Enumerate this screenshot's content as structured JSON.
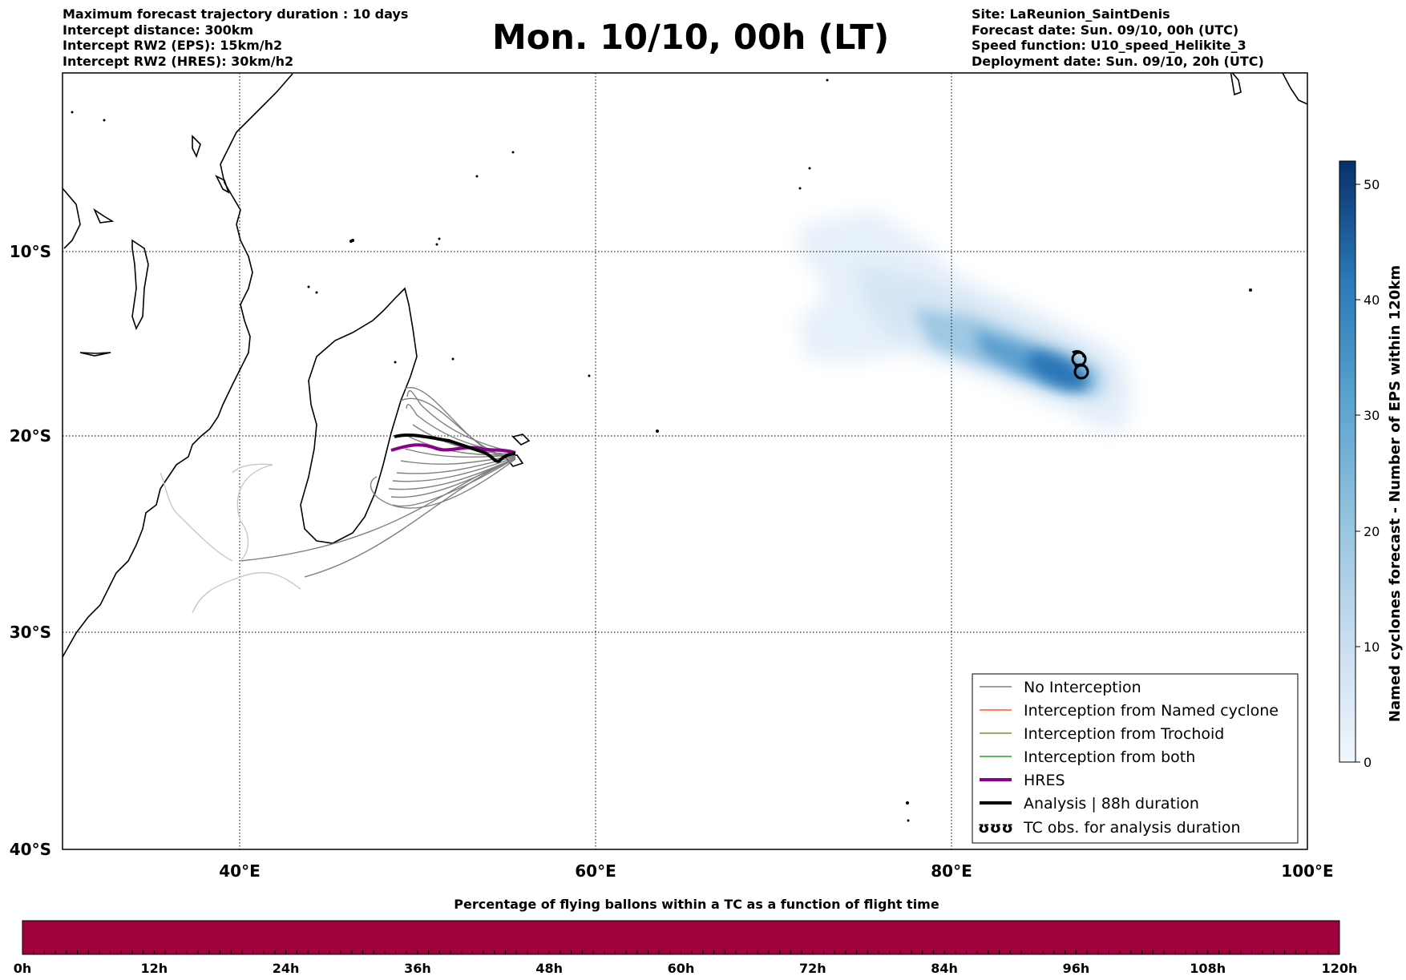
{
  "header_left": [
    "Maximum forecast trajectory duration : 10 days",
    "Intercept distance: 300km",
    "Intercept RW2 (EPS):  15km/h2",
    "Intercept RW2 (HRES): 30km/h2"
  ],
  "title": "Mon. 10/10, 00h (LT)",
  "header_right": [
    "Site: LaReunion_SaintDenis",
    "Forecast date: Sun. 09/10, 00h (UTC)",
    "Speed function: U10_speed_Helikite_3",
    "Deployment date: Sun. 09/10, 20h (UTC)"
  ],
  "map": {
    "lon_range": [
      30,
      100
    ],
    "lat_range": [
      -40,
      0
    ],
    "x_ticks": [
      "40°E",
      "60°E",
      "80°E",
      "100°E"
    ],
    "y_ticks": [
      "10°S",
      "20°S",
      "30°S",
      "40°S"
    ],
    "grid": true,
    "legend": {
      "position": "bottom-right",
      "items": [
        {
          "label": "No Interception",
          "color": "#808080"
        },
        {
          "label": "Interception from Named cyclone",
          "color": "#ff5a1e"
        },
        {
          "label": "Interception from Trochoid",
          "color": "#8c8c28"
        },
        {
          "label": "Interception from both",
          "color": "#2aa02a"
        },
        {
          "label": "HRES",
          "color": "#8b008b"
        },
        {
          "label": "Analysis | 88h duration",
          "color": "#000000"
        },
        {
          "label": "TC obs. for analysis duration",
          "symbol": "ʊʊʊ"
        }
      ]
    }
  },
  "colorbar": {
    "label": "Named cyclones forecast - Number of EPS within 120km",
    "ticks": [
      "0",
      "10",
      "20",
      "30",
      "40",
      "50"
    ],
    "range": [
      0,
      52
    ],
    "colors": [
      "#f0f6fd",
      "#08306b"
    ]
  },
  "flight_bar": {
    "title": "Percentage of flying ballons within a TC as a function of flight time",
    "ticks": [
      "0h",
      "12h",
      "24h",
      "36h",
      "48h",
      "60h",
      "72h",
      "84h",
      "96h",
      "108h",
      "120h"
    ],
    "color": "#a0003c"
  }
}
